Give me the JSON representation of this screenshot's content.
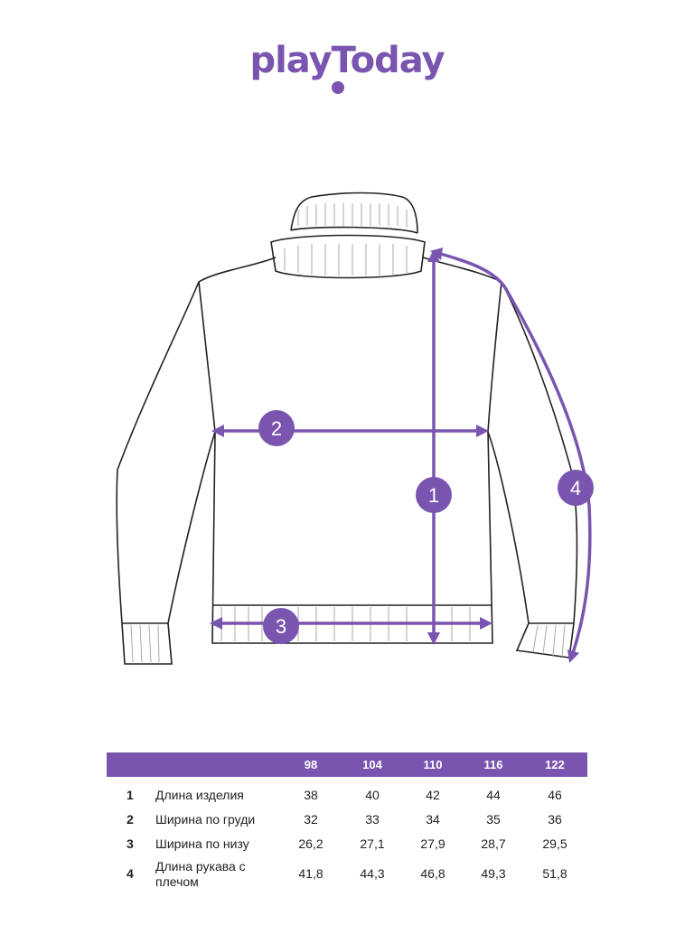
{
  "brand": {
    "logo_text": "playToday",
    "color": "#7a55b0"
  },
  "diagram": {
    "markers": [
      "1",
      "2",
      "3",
      "4"
    ]
  },
  "size_table": {
    "sizes": [
      "98",
      "104",
      "110",
      "116",
      "122"
    ],
    "rows": [
      {
        "num": "1",
        "label": "Длина изделия",
        "values": [
          "38",
          "40",
          "42",
          "44",
          "46"
        ]
      },
      {
        "num": "2",
        "label": "Ширина по груди",
        "values": [
          "32",
          "33",
          "34",
          "35",
          "36"
        ]
      },
      {
        "num": "3",
        "label": "Ширина по низу",
        "values": [
          "26,2",
          "27,1",
          "27,9",
          "28,7",
          "29,5"
        ]
      },
      {
        "num": "4",
        "label": "Длина рукава с плечом",
        "values": [
          "41,8",
          "44,3",
          "46,8",
          "49,3",
          "51,8"
        ]
      }
    ]
  }
}
